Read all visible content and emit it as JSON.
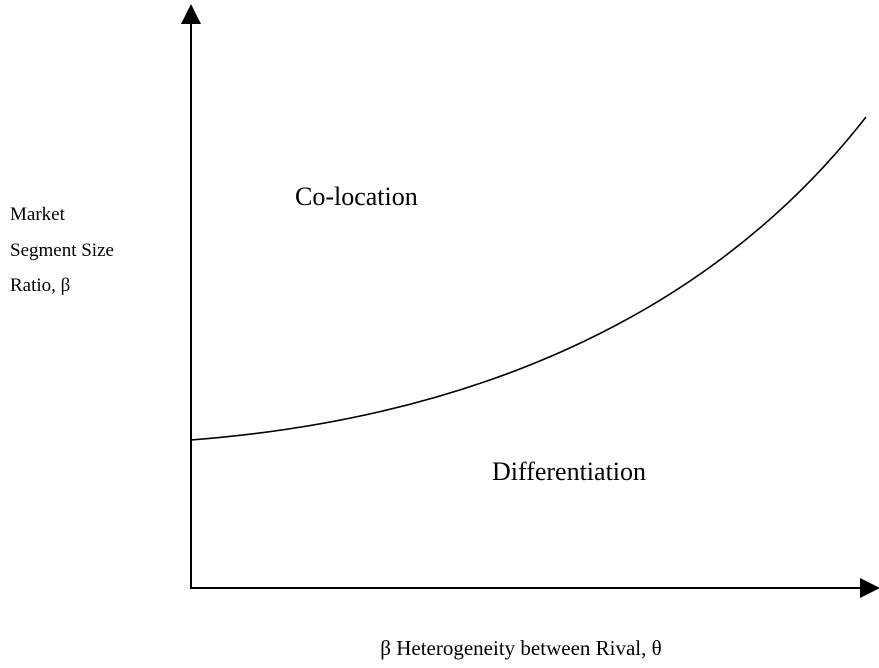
{
  "axes": {
    "y_label_lines": [
      "Market",
      "Segment Size",
      "Ratio, β"
    ],
    "x_label": "β Heterogeneity between Rival, θ"
  },
  "regions": {
    "upper": "Co-location",
    "lower": "Differentiation"
  }
}
